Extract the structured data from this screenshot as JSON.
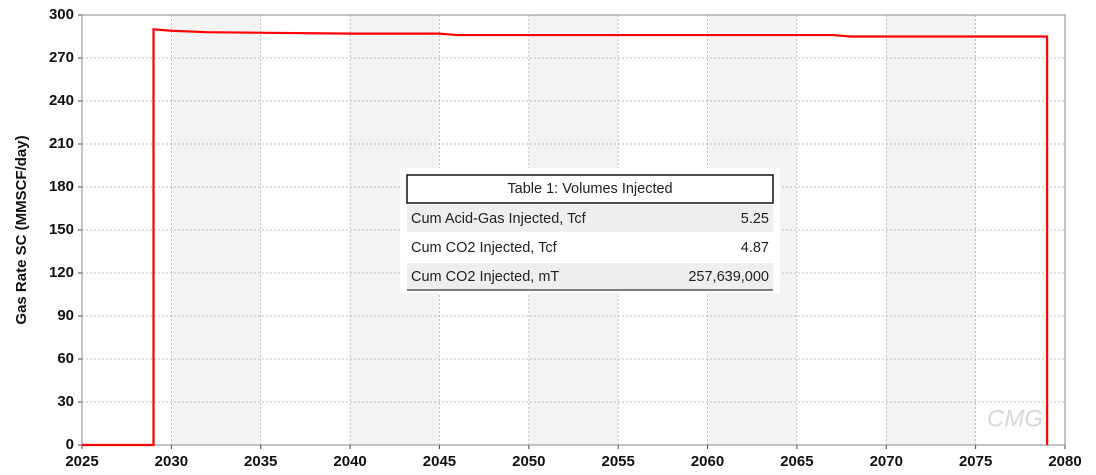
{
  "chart_data": {
    "type": "line",
    "y_label": "Gas Rate SC (MMSCF/day)",
    "x": [
      2025,
      2029,
      2029,
      2030,
      2032,
      2040,
      2045,
      2046,
      2067,
      2068,
      2079,
      2079
    ],
    "series": [
      {
        "name": "Gas Rate SC",
        "color": "#ff0000",
        "values": [
          0,
          0,
          290,
          289,
          288,
          287,
          287,
          286,
          286,
          285,
          285,
          0
        ]
      }
    ],
    "xlim": [
      2025,
      2080
    ],
    "xticks": [
      2025,
      2030,
      2035,
      2040,
      2045,
      2050,
      2055,
      2060,
      2065,
      2070,
      2075,
      2080
    ],
    "ylim": [
      0,
      300
    ],
    "yticks": [
      0,
      30,
      60,
      90,
      120,
      150,
      180,
      210,
      240,
      270,
      300
    ],
    "grid": true,
    "watermark": "CMG",
    "table": {
      "title": "Table 1: Volumes Injected",
      "rows": [
        [
          "Cum Acid-Gas Injected, Tcf",
          "5.25"
        ],
        [
          "Cum CO2 Injected, Tcf",
          "4.87"
        ],
        [
          "Cum CO2 Injected, mT",
          "257,639,000"
        ]
      ]
    }
  }
}
